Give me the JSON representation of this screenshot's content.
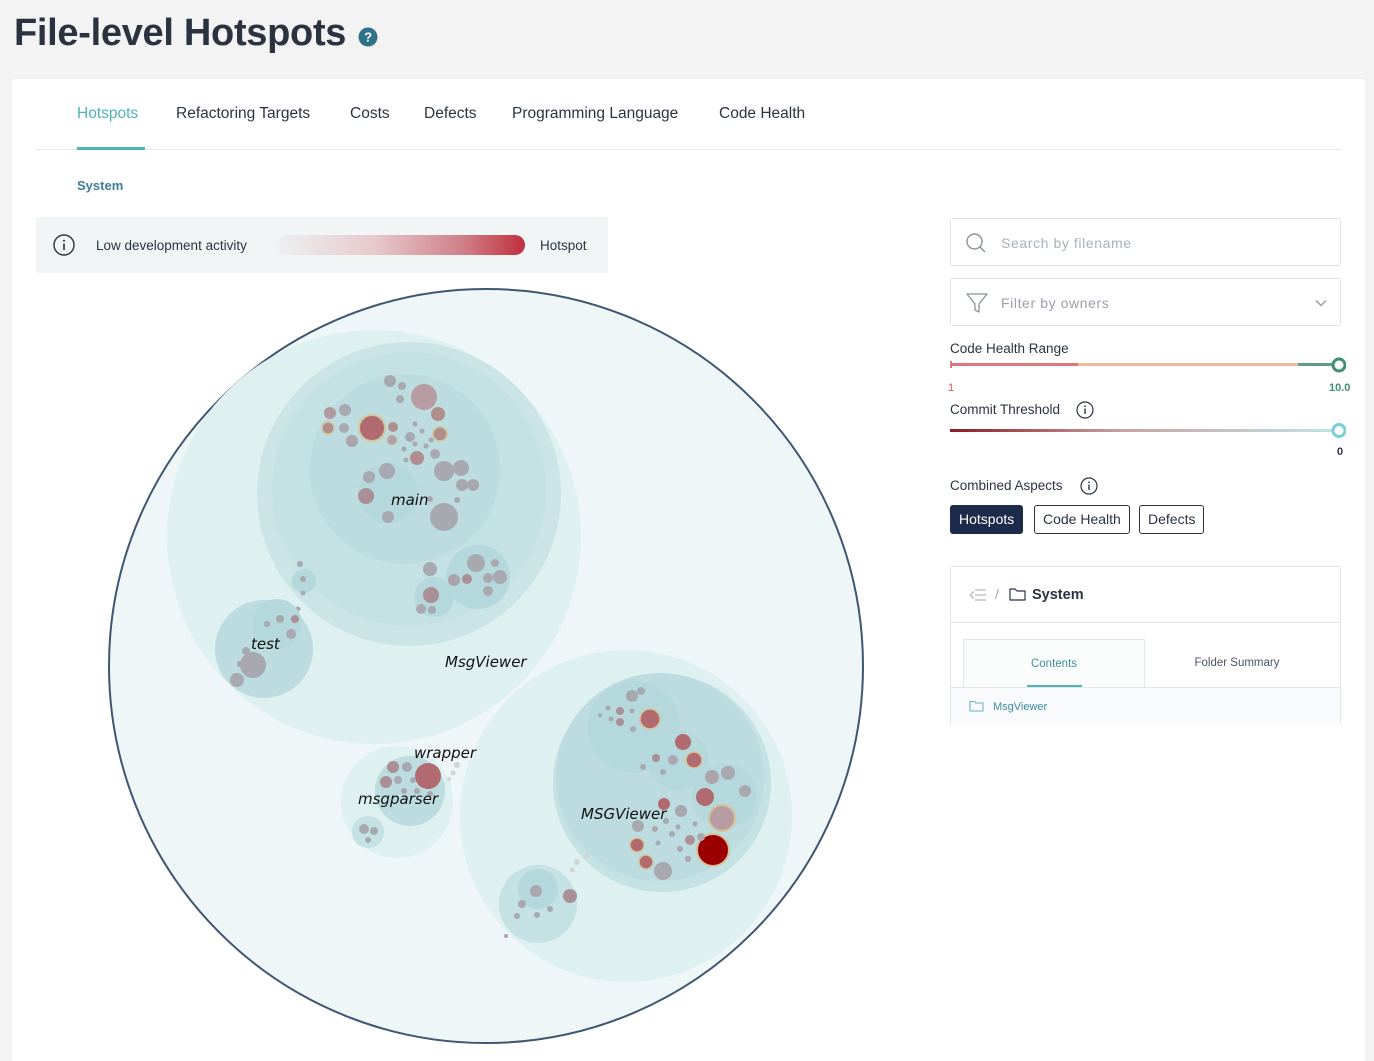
{
  "header": {
    "title": "File-level Hotspots",
    "help_icon": "question-circle-icon"
  },
  "tabs": [
    {
      "label": "Hotspots",
      "active": true
    },
    {
      "label": "Refactoring Targets"
    },
    {
      "label": "Costs"
    },
    {
      "label": "Defects"
    },
    {
      "label": "Programming Language"
    },
    {
      "label": "Code Health"
    }
  ],
  "breadcrumb": {
    "current": "System"
  },
  "legend": {
    "info_icon": "info-circle-icon",
    "low_label": "Low development activity",
    "high_label": "Hotspot",
    "colors": {
      "low": "#eef1f2",
      "high": "#c0303d"
    }
  },
  "visualization": {
    "labels": {
      "main": "main",
      "test": "test",
      "msgviewer_upper": "MsgViewer",
      "wrapper": "wrapper",
      "msgparser": "msgparser",
      "msgviewer_lower": "MSGViewer"
    },
    "colors": {
      "outline": "#3f5673",
      "node": "#c7e2e4",
      "hotspot": "#9b0000"
    }
  },
  "sidebar": {
    "search": {
      "placeholder": "Search by filename",
      "value": ""
    },
    "filter": {
      "placeholder": "Filter by owners"
    },
    "code_health_range": {
      "label": "Code Health Range",
      "min_label": "1",
      "max_label": "10.0",
      "min": 1,
      "max": 10.0
    },
    "commit_threshold": {
      "label": "Commit Threshold",
      "value_label": "0",
      "value": 0
    },
    "combined_aspects": {
      "label": "Combined Aspects",
      "buttons": [
        {
          "label": "Hotspots",
          "active": true
        },
        {
          "label": "Code Health",
          "active": false
        },
        {
          "label": "Defects",
          "active": false
        }
      ]
    },
    "tree": {
      "title": "System",
      "tabs": [
        {
          "label": "Contents",
          "active": true
        },
        {
          "label": "Folder Summary",
          "active": false
        }
      ],
      "items": [
        {
          "label": "MsgViewer",
          "type": "folder"
        }
      ]
    }
  }
}
